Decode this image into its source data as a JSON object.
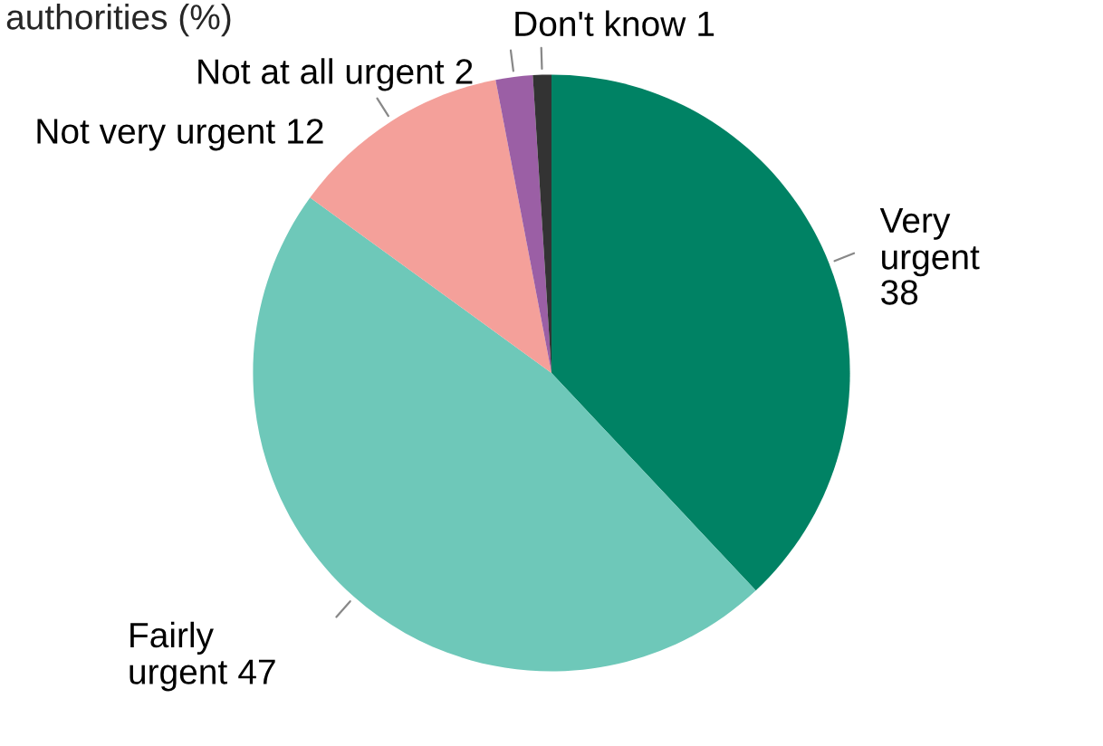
{
  "chart_data": {
    "type": "pie",
    "title": "authorities (%)",
    "categories": [
      "Very urgent",
      "Fairly urgent",
      "Not very urgent",
      "Not at all urgent",
      "Don't know"
    ],
    "values": [
      38,
      47,
      12,
      2,
      1
    ],
    "colors": [
      "#008264",
      "#6ec8b9",
      "#f4a09a",
      "#9b5fa5",
      "#333333"
    ],
    "data_labels": true,
    "legend": false
  }
}
